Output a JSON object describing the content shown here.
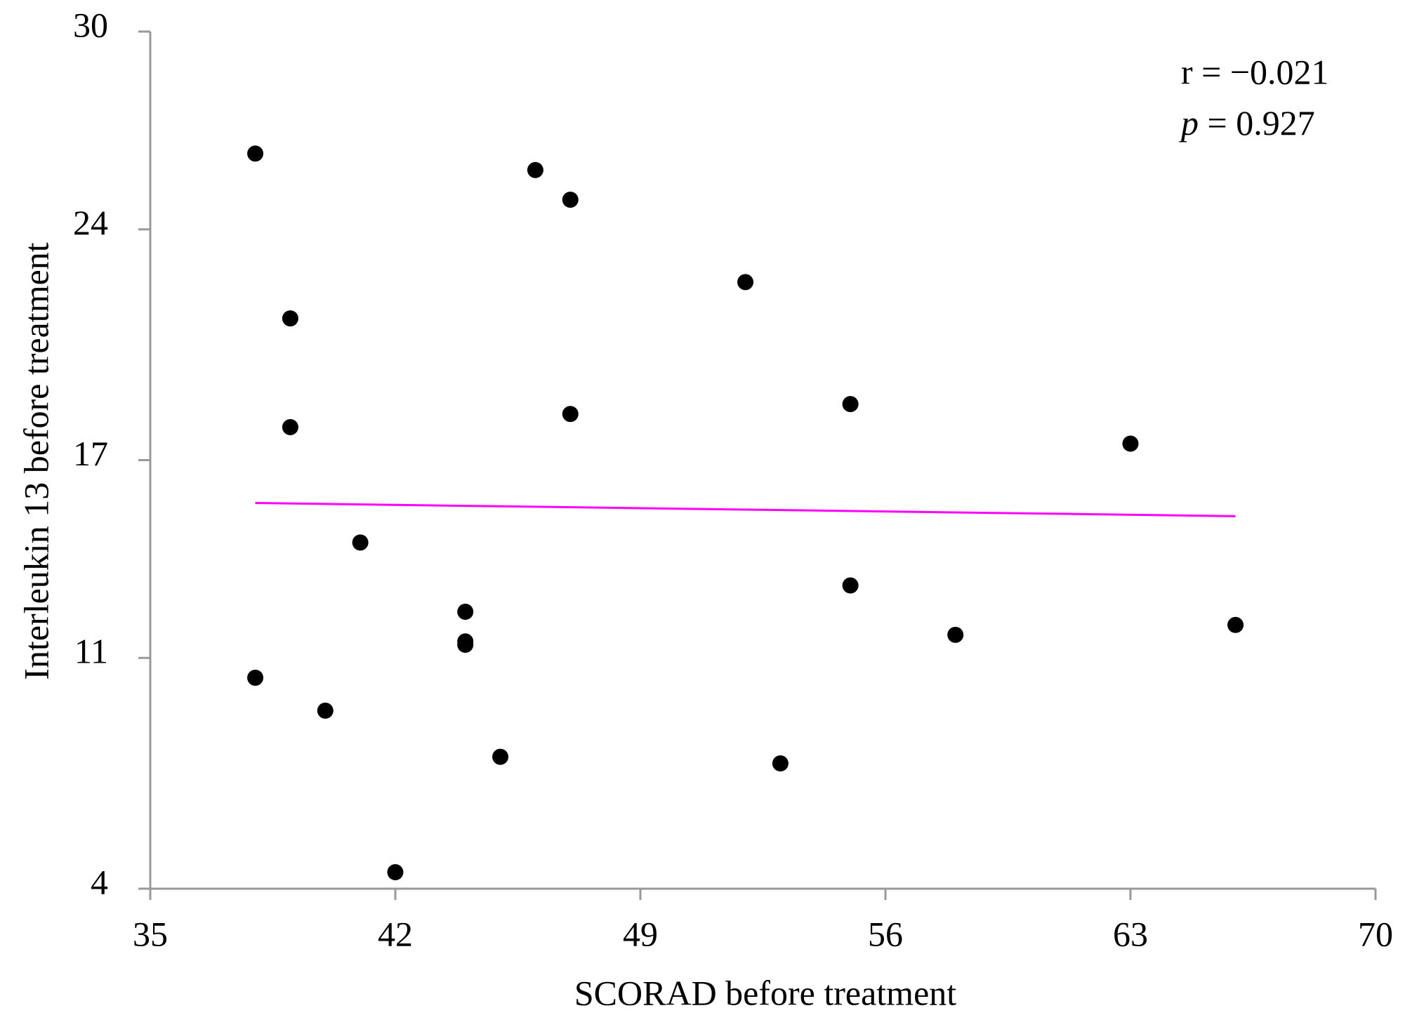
{
  "chart_data": {
    "type": "scatter",
    "xlabel": "SCORAD before treatment",
    "ylabel": "Interleukin 13 before treatment",
    "x": [
      38,
      46,
      47,
      52,
      39,
      55,
      47,
      39,
      63,
      41,
      55,
      44,
      66,
      58,
      44,
      44,
      38,
      40,
      45,
      53,
      42
    ],
    "values": [
      26.3,
      25.8,
      24.9,
      22.4,
      21.3,
      18.7,
      18.4,
      18.0,
      17.5,
      14.5,
      13.2,
      12.4,
      12.0,
      11.7,
      11.5,
      11.4,
      10.4,
      9.4,
      8.0,
      7.8,
      4.5
    ],
    "color": "#000000",
    "trendline": {
      "x": [
        38,
        66
      ],
      "values": [
        15.7,
        15.3
      ],
      "color": "#ff00ff"
    },
    "xlim": [
      35,
      70
    ],
    "xticks": [
      35,
      42,
      49,
      56,
      63,
      70
    ],
    "ylim": [
      4,
      30
    ],
    "yticks": [
      4,
      11,
      17,
      24,
      30
    ],
    "annotations": [
      {
        "text": "r = −0.021"
      },
      {
        "italic": "p",
        "text": " = 0.927"
      }
    ]
  }
}
